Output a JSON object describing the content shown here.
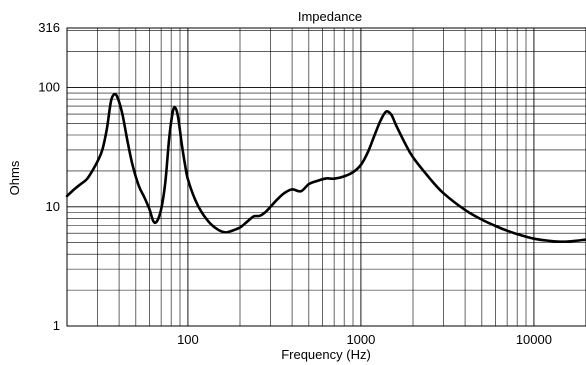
{
  "chart_data": {
    "type": "line",
    "title": "Impedance",
    "xlabel": "Frequency (Hz)",
    "ylabel": "Ohms",
    "x_scale": "log",
    "y_scale": "log",
    "xlim": [
      20,
      20000
    ],
    "ylim": [
      1,
      316
    ],
    "grid": true,
    "x_ticks": [
      {
        "value": 100,
        "label": "100"
      },
      {
        "value": 1000,
        "label": "1000"
      },
      {
        "value": 10000,
        "label": "10000"
      }
    ],
    "y_ticks": [
      {
        "value": 1,
        "label": "1"
      },
      {
        "value": 10,
        "label": "10"
      },
      {
        "value": 100,
        "label": "100"
      },
      {
        "value": 316,
        "label": "316"
      }
    ],
    "series": [
      {
        "color": "#000000",
        "x": [
          20,
          22,
          24,
          26,
          28,
          30,
          32,
          34,
          36,
          38,
          40,
          42,
          45,
          48,
          52,
          56,
          60,
          63,
          66,
          70,
          74,
          78,
          82,
          85,
          88,
          92,
          96,
          100,
          110,
          120,
          135,
          150,
          165,
          180,
          200,
          220,
          240,
          260,
          280,
          300,
          330,
          360,
          400,
          450,
          500,
          560,
          630,
          700,
          800,
          900,
          1000,
          1100,
          1200,
          1300,
          1400,
          1500,
          1600,
          1800,
          2000,
          2500,
          3000,
          4000,
          5000,
          6000,
          7000,
          8000,
          10000,
          12000,
          15000,
          20000
        ],
        "y": [
          12.3,
          14,
          15.5,
          17,
          20,
          24,
          30,
          45,
          78,
          88,
          76,
          58,
          34,
          22,
          15,
          12,
          9.5,
          7.6,
          7.5,
          9.5,
          16,
          38,
          64,
          67,
          55,
          34,
          23,
          17,
          11.5,
          9,
          7.2,
          6.4,
          6.1,
          6.3,
          6.7,
          7.5,
          8.3,
          8.4,
          9,
          10,
          11.6,
          13,
          14,
          13.5,
          15.5,
          16.5,
          17.3,
          17.2,
          18,
          19.5,
          22.5,
          29,
          40,
          53,
          63,
          59,
          48,
          34,
          26,
          17.3,
          13,
          9.4,
          7.8,
          6.9,
          6.3,
          5.9,
          5.4,
          5.2,
          5.1,
          5.3
        ]
      }
    ]
  }
}
